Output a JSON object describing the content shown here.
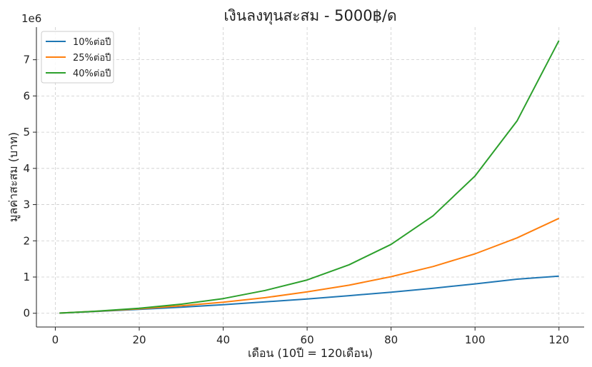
{
  "chart_data": {
    "type": "line",
    "title": "เงินลงทุนสะสม - 5000฿/ด",
    "xlabel": "เดือน (10ปี = 120เดือน)",
    "ylabel": "มูลค่าสะสม (บาท)",
    "y_offset_label": "1e6",
    "xlim": [
      -4.5,
      126
    ],
    "ylim": [
      -380000,
      7900000
    ],
    "x_ticks": [
      0,
      20,
      40,
      60,
      80,
      100,
      120
    ],
    "x_tick_labels": [
      "0",
      "20",
      "40",
      "60",
      "80",
      "100",
      "120"
    ],
    "y_ticks": [
      0,
      1000000,
      2000000,
      3000000,
      4000000,
      5000000,
      6000000,
      7000000
    ],
    "y_tick_labels": [
      "0",
      "1",
      "2",
      "3",
      "4",
      "5",
      "6",
      "7"
    ],
    "grid": true,
    "legend_position": "top-left",
    "x": [
      1,
      10,
      20,
      30,
      40,
      50,
      60,
      70,
      80,
      90,
      100,
      110,
      120
    ],
    "series": [
      {
        "name": "10%ต่อปี",
        "color": "#1f77b4",
        "values": [
          5000,
          52000,
          108000,
          169000,
          238000,
          313000,
          395000,
          485000,
          582000,
          690000,
          810000,
          940000,
          1025000
        ]
      },
      {
        "name": "25%ต่อปี",
        "color": "#ff7f0e",
        "values": [
          5000,
          55000,
          122000,
          205000,
          305000,
          430000,
          590000,
          775000,
          1010000,
          1290000,
          1640000,
          2080000,
          2620000
        ]
      },
      {
        "name": "40%ต่อปี",
        "color": "#2ca02c",
        "values": [
          5000,
          58000,
          137000,
          250000,
          405000,
          630000,
          920000,
          1340000,
          1900000,
          2690000,
          3790000,
          5310000,
          7530000
        ]
      }
    ]
  }
}
